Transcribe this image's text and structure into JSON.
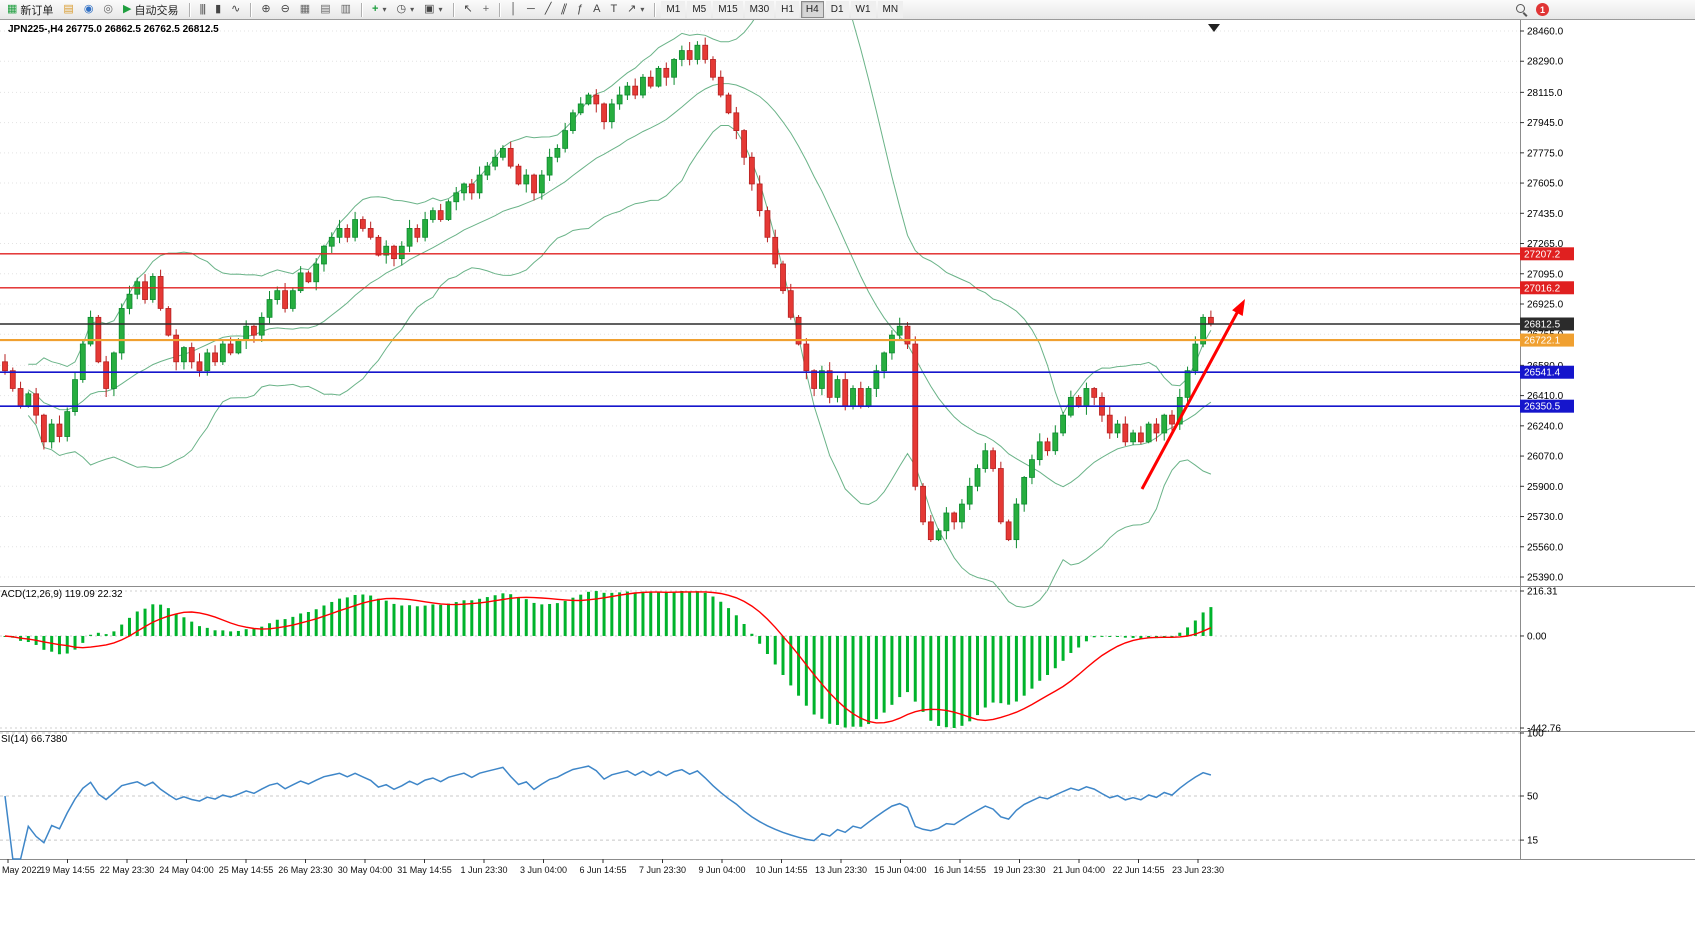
{
  "toolbar": {
    "new_order_label": "新订单",
    "auto_trading_label": "自动交易",
    "timeframes": [
      "M1",
      "M5",
      "M15",
      "M30",
      "H1",
      "H4",
      "D1",
      "W1",
      "MN"
    ],
    "active_timeframe": "H4",
    "notification_count": "1"
  },
  "icons": {
    "new_order": "▦",
    "charts": "▤",
    "metaquotes": "◉",
    "community": "◎",
    "autotrade_play": "▶",
    "bar_chart": "|||",
    "candles": "▮",
    "line_chart": "∿",
    "zoom_in": "⊕",
    "zoom_out": "⊖",
    "tile": "▦",
    "cascade": "▤",
    "arrange": "▥",
    "indicators": "+",
    "periods": "◷",
    "templates": "▣",
    "cursor": "↖",
    "crosshair": "+",
    "vline": "│",
    "hline": "─",
    "trendline": "╱",
    "channel": "∥",
    "fibonacci": "ƒ",
    "text_tool": "A",
    "label_tool": "T",
    "arrows_tool": "↗",
    "caret": "▾"
  },
  "chart": {
    "title": "JPN225-,H4 26775.0 26862.5 26762.5 26812.5",
    "macd_label": "ACD(12,26,9) 119.09 22.32",
    "rsi_label": "SI(14) 66.7380"
  },
  "chart_data": {
    "type": "candlestick",
    "symbol": "JPN225-",
    "period": "H4",
    "ohlc": {
      "open": 26775.0,
      "high": 26862.5,
      "low": 26762.5,
      "close": 26812.5
    },
    "price_axis": [
      28460.0,
      28290.0,
      28115.0,
      27945.0,
      27775.0,
      27605.0,
      27435.0,
      27265.0,
      27095.0,
      26925.0,
      26755.0,
      26580.0,
      26410.0,
      26240.0,
      26070.0,
      25900.0,
      25730.0,
      25560.0,
      25390.0
    ],
    "time_axis": [
      "May 2022",
      "19 May 14:55",
      "22 May 23:30",
      "24 May 04:00",
      "25 May 14:55",
      "26 May 23:30",
      "30 May 04:00",
      "31 May 14:55",
      "1 Jun 23:30",
      "3 Jun 04:00",
      "6 Jun 14:55",
      "7 Jun 23:30",
      "9 Jun 04:00",
      "10 Jun 14:55",
      "13 Jun 23:30",
      "15 Jun 04:00",
      "16 Jun 14:55",
      "19 Jun 23:30",
      "21 Jun 04:00",
      "22 Jun 14:55",
      "23 Jun 23:30"
    ],
    "closes": [
      26550,
      26450,
      26350,
      26420,
      26300,
      26150,
      26250,
      26180,
      26320,
      26500,
      26700,
      26850,
      26600,
      26450,
      26650,
      26900,
      26980,
      27050,
      26950,
      27080,
      26900,
      26750,
      26600,
      26680,
      26600,
      26550,
      26650,
      26600,
      26700,
      26650,
      26720,
      26800,
      26750,
      26850,
      26950,
      27000,
      26900,
      27000,
      27100,
      27050,
      27150,
      27250,
      27300,
      27350,
      27300,
      27400,
      27350,
      27300,
      27200,
      27250,
      27180,
      27250,
      27350,
      27300,
      27400,
      27450,
      27400,
      27500,
      27550,
      27600,
      27550,
      27650,
      27700,
      27750,
      27800,
      27700,
      27600,
      27650,
      27550,
      27650,
      27750,
      27800,
      27900,
      28000,
      28050,
      28100,
      28050,
      27950,
      28050,
      28100,
      28150,
      28100,
      28200,
      28150,
      28250,
      28200,
      28300,
      28350,
      28300,
      28380,
      28300,
      28200,
      28100,
      28000,
      27900,
      27750,
      27600,
      27450,
      27300,
      27150,
      27000,
      26850,
      26700,
      26550,
      26450,
      26550,
      26400,
      26500,
      26350,
      26450,
      26350,
      26450,
      26550,
      26650,
      26750,
      26800,
      26700,
      25900,
      25700,
      25600,
      25650,
      25750,
      25700,
      25800,
      25900,
      26000,
      26100,
      26000,
      25700,
      25600,
      25800,
      25950,
      26050,
      26150,
      26100,
      26200,
      26300,
      26400,
      26350,
      26450,
      26400,
      26300,
      26200,
      26250,
      26150,
      26200,
      26150,
      26250,
      26200,
      26300,
      26250,
      26400,
      26550,
      26700,
      26850,
      26812.5
    ],
    "levels": [
      {
        "price": 27207.2,
        "color": "#e02020",
        "width": 1.4
      },
      {
        "price": 27016.2,
        "color": "#e02020",
        "width": 1.4
      },
      {
        "price": 26812.5,
        "color": "#2b2b2b",
        "width": 1.4
      },
      {
        "price": 26722.1,
        "color": "#f0a030",
        "width": 2.2
      },
      {
        "price": 26541.4,
        "color": "#1515cc",
        "width": 1.6
      },
      {
        "price": 26350.5,
        "color": "#1515cc",
        "width": 1.6
      }
    ],
    "bollinger": {
      "period": 20,
      "deviation": 2,
      "color": "#6ab388"
    },
    "macd": {
      "fast": 12,
      "slow": 26,
      "signal": 9,
      "value": 119.09,
      "signal_value": 22.32,
      "scale": [
        216.31,
        0.0,
        -442.76
      ],
      "histogram_color": "#00b32c",
      "signal_color": "#ff0000"
    },
    "rsi": {
      "period": 14,
      "value": 66.738,
      "scale": [
        100,
        50,
        15
      ],
      "line_color": "#3e86c8"
    },
    "trend_arrow_color": "#ff0000",
    "candle_up_color": "#27ae3f",
    "candle_down_color": "#e53935"
  }
}
